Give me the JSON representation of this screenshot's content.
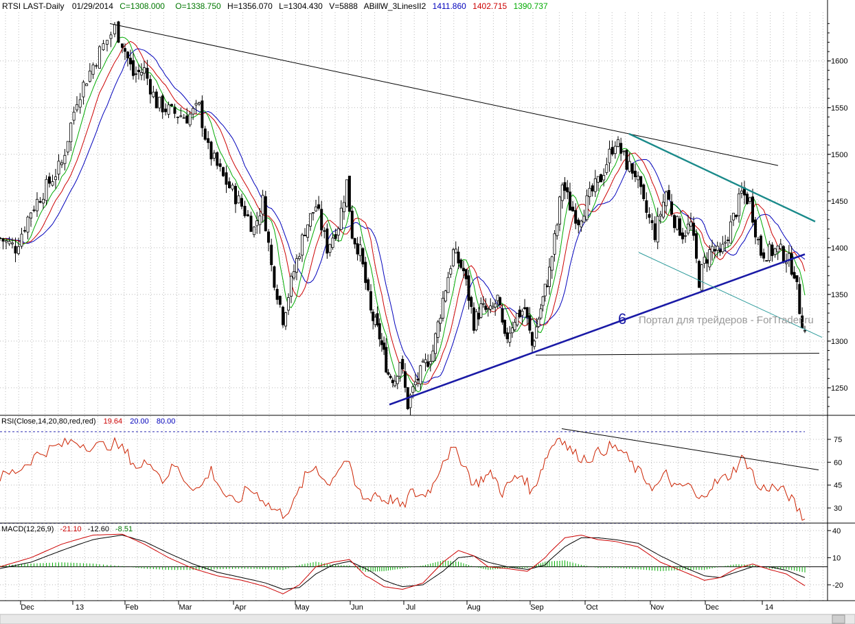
{
  "colors": {
    "background": "#ffffff",
    "grid": "#b8b8b8",
    "candle": "#000000",
    "ma_fast": "#00aa00",
    "ma_mid": "#cc0000",
    "ma_slow": "#0000bb",
    "support": "#1a1aa6",
    "resistance_teal": "#1a8a8a",
    "channel_teal": "#2a9a9a",
    "rsi_line": "#cc2200",
    "macd_line": "#000000",
    "signal_line": "#cc0000",
    "histogram": "#00aa00",
    "dashed_level": "#2a2ab0"
  },
  "header": {
    "symbol": "RTSI LAST-Daily",
    "date": "01/29/2014",
    "close": "C=1308.000",
    "open": "O=1338.750",
    "high": "H=1356.070",
    "low": "L=1304.430",
    "volume": "V=5888",
    "indicator_name": "ABillW_3LinesII2",
    "ind_val_1": "1411.860",
    "ind_val_2": "1402.715",
    "ind_val_3": "1390.737"
  },
  "rsi_header": {
    "name": "RSI(Close,14,20,80,red,red)",
    "value": "19.64",
    "low": "20.00",
    "high": "80.00"
  },
  "macd_header": {
    "name": "MACD(12,26,9)",
    "macd": "-21.10",
    "signal": "-12.60",
    "hist": "-8.51"
  },
  "annotations": {
    "wave_label": "6",
    "watermark": "Портал для трейдеров - ForTrader.ru"
  },
  "chart_data": [
    {
      "type": "candlestick",
      "title": "RTSI LAST-Daily",
      "y_ticks": [
        1250,
        1300,
        1350,
        1400,
        1450,
        1500,
        1550,
        1600
      ],
      "ylim": [
        1222,
        1652
      ],
      "x_labels": [
        "Dec",
        "13",
        "Feb",
        "Mar",
        "Apr",
        "May",
        "Jun",
        "Jul",
        "Aug",
        "Sep",
        "Oct",
        "Nov",
        "Dec",
        "14"
      ],
      "price_path_keypoints": [
        [
          0,
          1410
        ],
        [
          5,
          1400
        ],
        [
          10,
          1440
        ],
        [
          20,
          1490
        ],
        [
          25,
          1560
        ],
        [
          32,
          1610
        ],
        [
          36,
          1635
        ],
        [
          38,
          1620
        ],
        [
          42,
          1585
        ],
        [
          46,
          1590
        ],
        [
          50,
          1555
        ],
        [
          55,
          1545
        ],
        [
          60,
          1540
        ],
        [
          64,
          1550
        ],
        [
          67,
          1505
        ],
        [
          72,
          1475
        ],
        [
          78,
          1445
        ],
        [
          82,
          1420
        ],
        [
          85,
          1450
        ],
        [
          88,
          1380
        ],
        [
          92,
          1325
        ],
        [
          96,
          1375
        ],
        [
          100,
          1420
        ],
        [
          104,
          1445
        ],
        [
          108,
          1400
        ],
        [
          112,
          1425
        ],
        [
          115,
          1470
        ],
        [
          117,
          1415
        ],
        [
          120,
          1395
        ],
        [
          124,
          1330
        ],
        [
          128,
          1305
        ],
        [
          132,
          1265
        ],
        [
          135,
          1260
        ],
        [
          137,
          1280
        ],
        [
          140,
          1232
        ],
        [
          143,
          1255
        ],
        [
          147,
          1275
        ],
        [
          150,
          1290
        ],
        [
          154,
          1345
        ],
        [
          158,
          1395
        ],
        [
          162,
          1375
        ],
        [
          166,
          1320
        ],
        [
          169,
          1335
        ],
        [
          173,
          1330
        ],
        [
          176,
          1345
        ],
        [
          179,
          1300
        ],
        [
          183,
          1325
        ],
        [
          187,
          1335
        ],
        [
          190,
          1295
        ],
        [
          194,
          1335
        ],
        [
          198,
          1375
        ],
        [
          201,
          1425
        ],
        [
          203,
          1470
        ],
        [
          206,
          1445
        ],
        [
          209,
          1430
        ],
        [
          213,
          1455
        ],
        [
          217,
          1475
        ],
        [
          220,
          1500
        ],
        [
          222,
          1515
        ],
        [
          226,
          1490
        ],
        [
          229,
          1480
        ],
        [
          232,
          1445
        ],
        [
          236,
          1415
        ],
        [
          240,
          1460
        ],
        [
          243,
          1430
        ],
        [
          246,
          1415
        ],
        [
          249,
          1425
        ],
        [
          252,
          1365
        ],
        [
          254,
          1385
        ],
        [
          257,
          1400
        ],
        [
          260,
          1390
        ],
        [
          263,
          1415
        ],
        [
          266,
          1440
        ],
        [
          268,
          1458
        ],
        [
          271,
          1450
        ],
        [
          273,
          1420
        ],
        [
          275,
          1395
        ],
        [
          278,
          1395
        ],
        [
          281,
          1398
        ],
        [
          284,
          1390
        ],
        [
          287,
          1375
        ],
        [
          289,
          1335
        ],
        [
          291,
          1310
        ]
      ],
      "x_keypoints": [
        [
          0,
          0
        ],
        [
          10,
          45
        ],
        [
          20,
          90
        ],
        [
          25,
          112
        ],
        [
          32,
          145
        ],
        [
          38,
          178
        ],
        [
          46,
          210
        ],
        [
          55,
          250
        ],
        [
          64,
          290
        ],
        [
          72,
          325
        ],
        [
          82,
          370
        ],
        [
          92,
          412
        ],
        [
          104,
          460
        ],
        [
          115,
          505
        ],
        [
          124,
          540
        ],
        [
          135,
          575
        ],
        [
          143,
          605
        ],
        [
          154,
          645
        ],
        [
          166,
          690
        ],
        [
          179,
          735
        ],
        [
          190,
          775
        ],
        [
          198,
          800
        ],
        [
          206,
          830
        ],
        [
          217,
          875
        ],
        [
          229,
          925
        ],
        [
          240,
          970
        ],
        [
          252,
          1018
        ],
        [
          263,
          1060
        ],
        [
          275,
          1108
        ],
        [
          284,
          1145
        ],
        [
          291,
          1172
        ]
      ],
      "trendlines": [
        {
          "name": "upper-resistance",
          "points": [
            [
              1350,
              1640
            ],
            [
              1310,
              1488
            ]
          ]
        },
        {
          "name": "long-support",
          "points": [
            [
              1227,
              1232
            ],
            [
              1368,
              1393
            ]
          ]
        },
        {
          "name": "teal-resistance",
          "points": [
            [
              1320,
              1522
            ],
            [
              1372,
              1428
            ]
          ]
        },
        {
          "name": "teal-channel",
          "points": [
            [
              1303,
              1395
            ],
            [
              1370,
              1304
            ]
          ]
        },
        {
          "name": "horizontal-support",
          "points": [
            [
              1288,
              1285
            ],
            [
              1400,
              1287
            ]
          ]
        }
      ]
    },
    {
      "type": "line",
      "title": "RSI(Close,14,20,80,red,red)",
      "y_ticks": [
        30,
        45,
        60,
        75
      ],
      "ylim": [
        21,
        84
      ],
      "levels": [
        20,
        80
      ],
      "keypoints": [
        [
          0,
          50
        ],
        [
          6,
          55
        ],
        [
          12,
          65
        ],
        [
          18,
          70
        ],
        [
          24,
          74
        ],
        [
          30,
          70
        ],
        [
          36,
          72
        ],
        [
          40,
          65
        ],
        [
          44,
          55
        ],
        [
          48,
          62
        ],
        [
          52,
          48
        ],
        [
          56,
          58
        ],
        [
          60,
          47
        ],
        [
          64,
          42
        ],
        [
          68,
          55
        ],
        [
          72,
          40
        ],
        [
          76,
          32
        ],
        [
          80,
          43
        ],
        [
          84,
          38
        ],
        [
          88,
          30
        ],
        [
          92,
          26
        ],
        [
          96,
          33
        ],
        [
          100,
          50
        ],
        [
          104,
          58
        ],
        [
          108,
          45
        ],
        [
          112,
          56
        ],
        [
          115,
          62
        ],
        [
          118,
          45
        ],
        [
          122,
          35
        ],
        [
          126,
          40
        ],
        [
          130,
          35
        ],
        [
          134,
          36
        ],
        [
          138,
          30
        ],
        [
          141,
          40
        ],
        [
          146,
          38
        ],
        [
          150,
          45
        ],
        [
          154,
          62
        ],
        [
          158,
          68
        ],
        [
          162,
          60
        ],
        [
          166,
          45
        ],
        [
          170,
          50
        ],
        [
          174,
          52
        ],
        [
          178,
          40
        ],
        [
          182,
          48
        ],
        [
          186,
          52
        ],
        [
          190,
          40
        ],
        [
          194,
          55
        ],
        [
          198,
          68
        ],
        [
          202,
          78
        ],
        [
          205,
          70
        ],
        [
          208,
          65
        ],
        [
          212,
          62
        ],
        [
          216,
          66
        ],
        [
          220,
          70
        ],
        [
          224,
          68
        ],
        [
          228,
          58
        ],
        [
          232,
          50
        ],
        [
          236,
          43
        ],
        [
          240,
          52
        ],
        [
          244,
          42
        ],
        [
          248,
          46
        ],
        [
          252,
          34
        ],
        [
          256,
          44
        ],
        [
          260,
          48
        ],
        [
          264,
          52
        ],
        [
          268,
          62
        ],
        [
          271,
          58
        ],
        [
          274,
          42
        ],
        [
          278,
          44
        ],
        [
          282,
          42
        ],
        [
          285,
          38
        ],
        [
          288,
          30
        ],
        [
          291,
          22
        ]
      ],
      "trendline": {
        "points": [
          [
            1207,
            82
          ],
          [
            1360,
            55
          ]
        ]
      }
    },
    {
      "type": "line",
      "title": "MACD(12,26,9)",
      "y_ticks": [
        -20,
        10,
        40
      ],
      "ylim": [
        -36,
        46
      ],
      "zero_line": true,
      "macd_keypoints": [
        [
          0,
          0
        ],
        [
          10,
          10
        ],
        [
          20,
          25
        ],
        [
          30,
          35
        ],
        [
          38,
          36
        ],
        [
          46,
          25
        ],
        [
          54,
          10
        ],
        [
          62,
          -2
        ],
        [
          70,
          -10
        ],
        [
          78,
          -15
        ],
        [
          86,
          -22
        ],
        [
          92,
          -30
        ],
        [
          98,
          -20
        ],
        [
          104,
          0
        ],
        [
          110,
          5
        ],
        [
          116,
          8
        ],
        [
          122,
          -10
        ],
        [
          130,
          -22
        ],
        [
          138,
          -25
        ],
        [
          146,
          -18
        ],
        [
          154,
          5
        ],
        [
          160,
          18
        ],
        [
          166,
          12
        ],
        [
          172,
          0
        ],
        [
          180,
          -2
        ],
        [
          188,
          -5
        ],
        [
          196,
          10
        ],
        [
          204,
          32
        ],
        [
          210,
          35
        ],
        [
          216,
          30
        ],
        [
          222,
          28
        ],
        [
          230,
          22
        ],
        [
          238,
          5
        ],
        [
          246,
          -5
        ],
        [
          254,
          -15
        ],
        [
          260,
          -12
        ],
        [
          266,
          -2
        ],
        [
          272,
          3
        ],
        [
          278,
          -3
        ],
        [
          284,
          -8
        ],
        [
          291,
          -21
        ]
      ],
      "signal_keypoints": [
        [
          0,
          -2
        ],
        [
          10,
          5
        ],
        [
          20,
          18
        ],
        [
          30,
          30
        ],
        [
          38,
          35
        ],
        [
          46,
          28
        ],
        [
          54,
          15
        ],
        [
          62,
          3
        ],
        [
          70,
          -6
        ],
        [
          78,
          -12
        ],
        [
          86,
          -18
        ],
        [
          92,
          -25
        ],
        [
          98,
          -23
        ],
        [
          104,
          -8
        ],
        [
          110,
          2
        ],
        [
          116,
          6
        ],
        [
          122,
          -2
        ],
        [
          130,
          -15
        ],
        [
          138,
          -22
        ],
        [
          146,
          -20
        ],
        [
          154,
          -5
        ],
        [
          160,
          10
        ],
        [
          166,
          12
        ],
        [
          172,
          5
        ],
        [
          180,
          0
        ],
        [
          188,
          -3
        ],
        [
          196,
          2
        ],
        [
          204,
          22
        ],
        [
          210,
          32
        ],
        [
          216,
          32
        ],
        [
          222,
          30
        ],
        [
          230,
          26
        ],
        [
          238,
          12
        ],
        [
          246,
          0
        ],
        [
          254,
          -10
        ],
        [
          260,
          -12
        ],
        [
          266,
          -6
        ],
        [
          272,
          0
        ],
        [
          278,
          0
        ],
        [
          284,
          -4
        ],
        [
          291,
          -12
        ]
      ]
    }
  ]
}
